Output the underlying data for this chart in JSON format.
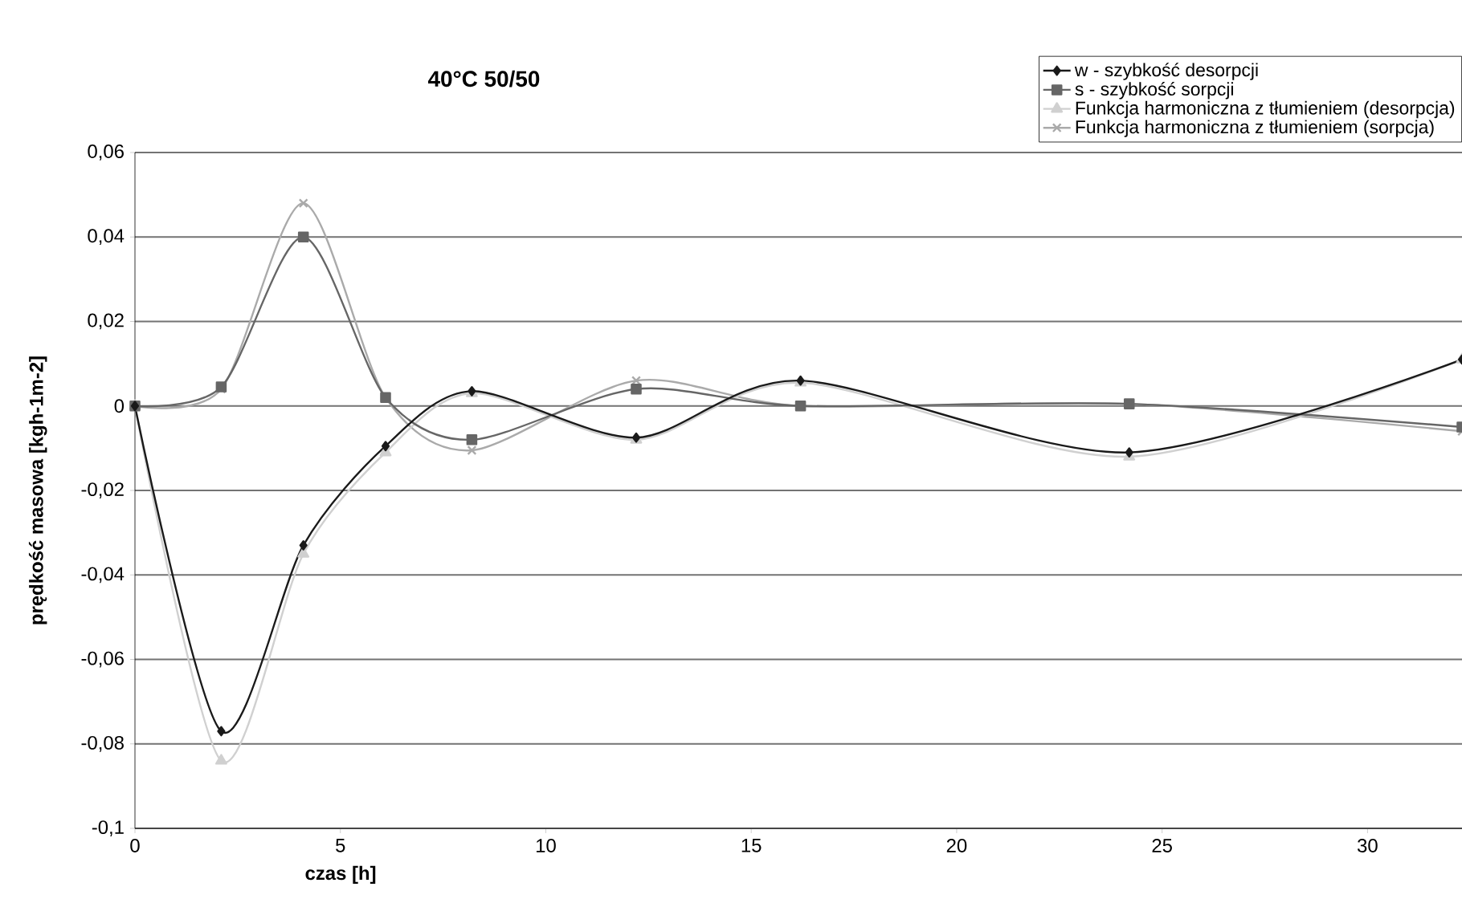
{
  "chart_data": {
    "type": "line",
    "title": "40°C 50/50",
    "xlabel": "czas [h]",
    "ylabel": "prędkość masowa [kgh-1m-2]",
    "x": [
      0,
      2.1,
      4.1,
      6.1,
      8.2,
      12.2,
      16.2,
      24.2,
      32.3
    ],
    "series": [
      {
        "name": "w - szybkość desorpcji",
        "color": "#1a1a1a",
        "marker": "diamond",
        "values": [
          0,
          -0.077,
          -0.033,
          -0.0095,
          0.0035,
          -0.0075,
          0.006,
          -0.011,
          0.011
        ]
      },
      {
        "name": "s  - szybkość sorpcji",
        "color": "#666666",
        "marker": "square",
        "values": [
          0,
          0.0045,
          0.04,
          0.002,
          -0.008,
          0.004,
          0,
          0.0005,
          -0.005
        ]
      },
      {
        "name": "Funkcja harmoniczna z tłumieniem (desorpcja)",
        "color": "#d0d0d0",
        "marker": "triangle",
        "values": [
          0,
          -0.084,
          -0.035,
          -0.011,
          0.003,
          -0.008,
          0.0055,
          -0.012,
          0.011
        ]
      },
      {
        "name": "Funkcja harmoniczna z tłumieniem (sorpcja)",
        "color": "#aaaaaa",
        "marker": "cross",
        "values": [
          0,
          0.004,
          0.048,
          0.002,
          -0.0105,
          0.006,
          0,
          0.0005,
          -0.006
        ]
      }
    ],
    "xlim": [
      0,
      32.3
    ],
    "ylim": [
      -0.1,
      0.06
    ],
    "xticks": [
      0,
      5,
      10,
      15,
      20,
      25,
      30
    ],
    "yticks": [
      {
        "value": -0.1,
        "label": "-0,1"
      },
      {
        "value": -0.08,
        "label": "-0,08"
      },
      {
        "value": -0.06,
        "label": "-0,06"
      },
      {
        "value": -0.04,
        "label": "-0,04"
      },
      {
        "value": -0.02,
        "label": "-0,02"
      },
      0,
      {
        "value": 0.02,
        "label": "0,02"
      },
      {
        "value": 0.04,
        "label": "0,04"
      },
      {
        "value": 0.06,
        "label": "0,06"
      }
    ],
    "grid": "y",
    "legend": "top right",
    "line_style": "solid"
  }
}
